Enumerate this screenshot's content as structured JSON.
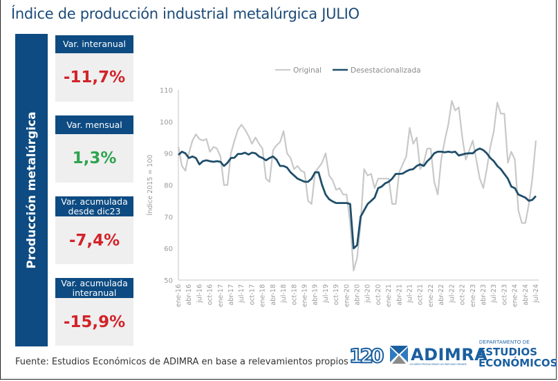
{
  "title": "Índice de producción industrial metalúrgica JULIO",
  "side_label": "Producción metalúrgica",
  "cards": [
    {
      "label": "Var. interanual",
      "value": "-11,7%",
      "sign": "negative"
    },
    {
      "label": "Var. mensual",
      "value": "1,3%",
      "sign": "positive"
    },
    {
      "label": "Var. acumulada desde dic23",
      "value": "-7,4%",
      "sign": "negative"
    },
    {
      "label": "Var. acumulada interanual",
      "value": "-15,9%",
      "sign": "negative"
    }
  ],
  "colors": {
    "brand_blue": "#0d4b82",
    "negative": "#d2232a",
    "positive": "#2ea44f",
    "original_line": "#c8c8c8",
    "desest_line": "#1f4e6b"
  },
  "source": "Fuente: Estudios Económicos de ADIMRA en base a relevamientos propios",
  "logos": {
    "anniversary": "120",
    "adimra": "ADIMRA",
    "adimra_tagline": "120 AÑOS PRODUCIENDO UN PAÍS MÁS GRANDE",
    "dept_small": "DEPARTAMENTO DE",
    "dept_line1": "ESTUDIOS",
    "dept_line2": "ECONÓMICOS"
  },
  "chart_data": {
    "type": "line",
    "title": "",
    "xlabel": "",
    "ylabel": "Índice 2015 = 100",
    "ylim": [
      50,
      110
    ],
    "yticks": [
      50,
      60,
      70,
      80,
      90,
      100,
      110
    ],
    "grid": false,
    "legend_position": "top-right",
    "x_tick_labels": [
      "ene-16",
      "abr-16",
      "jul-16",
      "oct-16",
      "ene-17",
      "abr-17",
      "jul-17",
      "oct-17",
      "ene-18",
      "abr-18",
      "jul-18",
      "oct-18",
      "ene-19",
      "abr-19",
      "jul-19",
      "oct-19",
      "ene-20",
      "abr-20",
      "jul-20",
      "oct-20",
      "ene-21",
      "abr-21",
      "jul-21",
      "oct-21",
      "ene-22",
      "abr-22",
      "jul-22",
      "oct-22",
      "ene-23",
      "abr-23",
      "jul-23",
      "oct-23",
      "ene-24",
      "abr-24",
      "jul-24"
    ],
    "x_start": "ene-16",
    "x_end": "jul-24",
    "frequency": "monthly",
    "series": [
      {
        "name": "Original",
        "values": [
          92,
          86,
          84.5,
          90,
          94,
          96,
          94.5,
          94,
          94.5,
          90.5,
          92,
          91.5,
          89,
          80,
          80,
          90,
          94,
          97.5,
          99,
          97.5,
          95.5,
          93,
          95,
          93,
          91.5,
          82,
          81,
          91,
          92.5,
          93.5,
          97,
          90,
          88.5,
          85,
          86,
          84.5,
          84,
          75,
          74,
          84,
          85.5,
          87,
          90,
          83,
          81.5,
          78.5,
          79,
          77,
          77,
          68,
          53,
          57,
          68,
          85,
          83,
          83.5,
          79,
          82,
          82,
          82,
          82,
          74,
          74,
          84,
          86.5,
          89,
          98,
          93,
          95,
          85,
          87,
          91.5,
          91.5,
          81,
          77,
          88,
          94,
          99,
          106.5,
          103.5,
          104.5,
          95,
          88,
          91,
          94,
          88,
          82,
          79,
          85,
          92,
          97,
          106,
          102.5,
          102.5,
          87,
          90.5,
          88,
          72,
          68,
          68,
          74,
          82,
          94
        ]
      },
      {
        "name": "Desestacionalizada",
        "values": [
          89.5,
          90.5,
          90,
          88.5,
          89,
          88.5,
          86.5,
          87.5,
          87.8,
          87.5,
          87.3,
          87.5,
          87.3,
          86,
          87,
          88.5,
          88.6,
          89.8,
          89.8,
          90.2,
          89.6,
          90.2,
          90,
          89,
          88.5,
          87.8,
          88.5,
          89,
          88,
          86,
          86,
          85.5,
          84,
          83,
          82,
          81.5,
          81,
          81,
          82,
          84,
          84,
          80,
          77,
          75.5,
          74.8,
          74.3,
          74.3,
          74.3,
          74.3,
          74,
          60,
          61,
          70,
          72,
          74,
          75,
          76,
          79,
          79.5,
          80.5,
          81,
          82,
          83.5,
          83.5,
          83.6,
          84.3,
          84.8,
          85,
          86,
          86.5,
          86,
          87.5,
          88.5,
          90,
          90.5,
          90.5,
          90.3,
          90.5,
          90.3,
          90.5,
          89.3,
          89.6,
          89.9,
          90,
          90,
          91,
          91.5,
          91,
          90,
          88.5,
          87.5,
          86,
          85,
          83.5,
          82,
          79.5,
          79,
          77,
          76.5,
          76,
          75,
          75.3,
          76.5
        ]
      }
    ]
  }
}
